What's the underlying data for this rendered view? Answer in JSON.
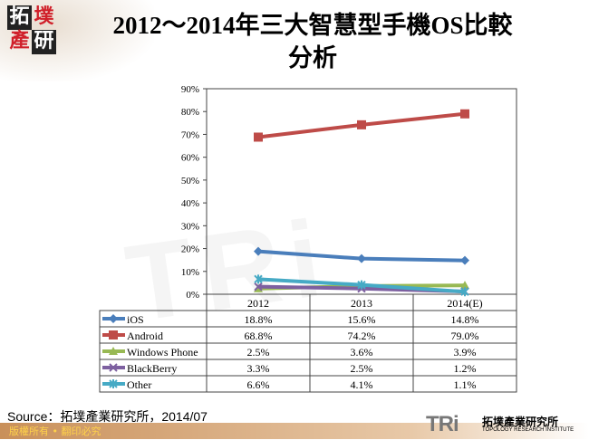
{
  "logo": {
    "chars": [
      "拓",
      "墣",
      "產",
      "研"
    ]
  },
  "title_line1": "2012～2014年三大智慧型手機OS比較",
  "title_line2": "分析",
  "source": "Source：拓墣產業研究所，2014/07",
  "footer": {
    "copyright": "版權所有 • 翻印必究",
    "brand_mark": "TRi",
    "brand_cn": "拓墣產業研究所",
    "brand_en": "TOPOLOGY RESEARCH INSTITUTE"
  },
  "chart_data": {
    "type": "line",
    "categories": [
      "2012",
      "2013",
      "2014(E)"
    ],
    "ylim": [
      0,
      90
    ],
    "yticks": [
      "0%",
      "10%",
      "20%",
      "30%",
      "40%",
      "50%",
      "60%",
      "70%",
      "80%",
      "90%"
    ],
    "grid": false,
    "legend": "data table below",
    "series": [
      {
        "name": "iOS",
        "values": [
          18.8,
          15.6,
          14.8
        ],
        "labels": [
          "18.8%",
          "15.6%",
          "14.8%"
        ],
        "color": "#4a7ebb",
        "marker": "diamond"
      },
      {
        "name": "Android",
        "values": [
          68.8,
          74.2,
          79.0
        ],
        "labels": [
          "68.8%",
          "74.2%",
          "79.0%"
        ],
        "color": "#be4b48",
        "marker": "square"
      },
      {
        "name": "Windows Phone",
        "values": [
          2.5,
          3.6,
          3.9
        ],
        "labels": [
          "2.5%",
          "3.6%",
          "3.9%"
        ],
        "color": "#98b954",
        "marker": "triangle"
      },
      {
        "name": "BlackBerry",
        "values": [
          3.3,
          2.5,
          1.2
        ],
        "labels": [
          "3.3%",
          "2.5%",
          "1.2%"
        ],
        "color": "#7d60a0",
        "marker": "x"
      },
      {
        "name": "Other",
        "values": [
          6.6,
          4.1,
          1.1
        ],
        "labels": [
          "6.6%",
          "4.1%",
          "1.1%"
        ],
        "color": "#46aac5",
        "marker": "star"
      }
    ]
  }
}
